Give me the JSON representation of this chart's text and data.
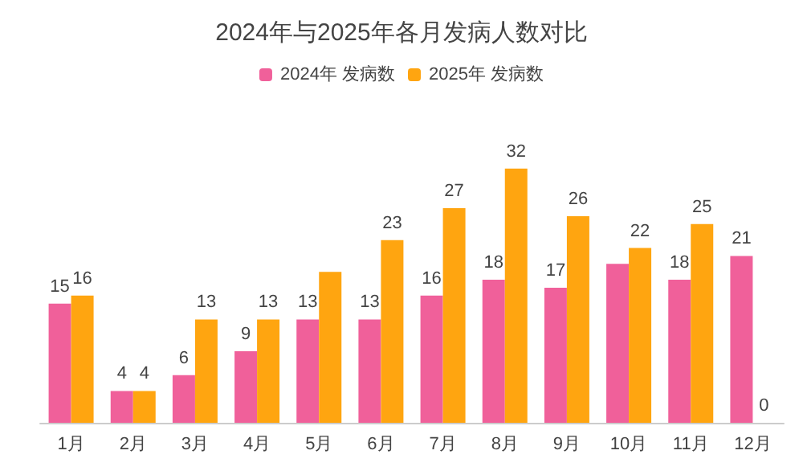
{
  "chart_data": {
    "type": "bar",
    "title": "2024年与2025年各月发病人数对比",
    "legend": "top",
    "categories": [
      "1月",
      "2月",
      "3月",
      "4月",
      "5月",
      "6月",
      "7月",
      "8月",
      "9月",
      "10月",
      "11月",
      "12月"
    ],
    "series": [
      {
        "name": "2024年 发病数",
        "color": "#f0609a",
        "values": [
          15,
          4,
          6,
          9,
          13,
          13,
          16,
          18,
          17,
          20,
          18,
          21
        ],
        "value_labels": [
          "15",
          "4",
          "6",
          "9",
          "13",
          "13",
          "16",
          "18",
          "17",
          null,
          "18",
          "21"
        ]
      },
      {
        "name": "2025年 发病数",
        "color": "#ffa510",
        "values": [
          16,
          4,
          13,
          13,
          19,
          23,
          27,
          32,
          26,
          22,
          25,
          0
        ],
        "value_labels": [
          "16",
          "4",
          "13",
          "13",
          null,
          "23",
          "27",
          "32",
          "26",
          "22",
          "25",
          "0"
        ]
      }
    ]
  }
}
